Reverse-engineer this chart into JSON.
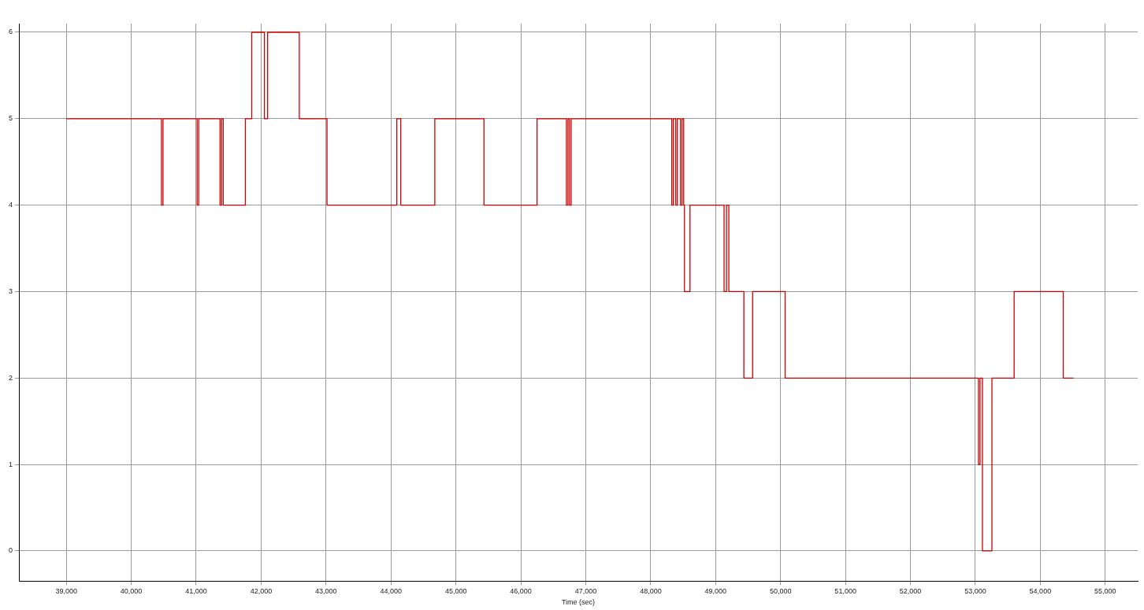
{
  "chart_data": {
    "type": "step",
    "xlabel": "Time (sec)",
    "x": [
      39000,
      40465,
      40489,
      41014,
      41038,
      41368,
      41392,
      41417,
      41758,
      41856,
      42051,
      42100,
      42588,
      43015,
      44090,
      44151,
      44675,
      45432,
      46250,
      46702,
      46726,
      46750,
      46775,
      48325,
      48349,
      48386,
      48410,
      48459,
      48483,
      48508,
      48520,
      48605,
      49130,
      49167,
      49203,
      49435,
      49570,
      50070,
      53048,
      53072,
      53109,
      53255,
      53597,
      54354,
      54513
    ],
    "series": [
      {
        "color": "#cc0000",
        "values": [
          5,
          4,
          5,
          4,
          5,
          4,
          5,
          4,
          5,
          6,
          5,
          6,
          5,
          4,
          5,
          4,
          5,
          4,
          5,
          4,
          5,
          4,
          5,
          4,
          5,
          4,
          5,
          4,
          5,
          4,
          3,
          4,
          3,
          4,
          3,
          2,
          3,
          2,
          1,
          2,
          0,
          2,
          3,
          2,
          2
        ]
      }
    ],
    "xlim": [
      38270,
      55500
    ],
    "ylim": [
      -0.35,
      6.1
    ],
    "xticks": [
      {
        "value": 39000,
        "label": "39,000"
      },
      {
        "value": 40000,
        "label": "40,000"
      },
      {
        "value": 41000,
        "label": "41,000"
      },
      {
        "value": 42000,
        "label": "42,000"
      },
      {
        "value": 43000,
        "label": "43,000"
      },
      {
        "value": 44000,
        "label": "44,000"
      },
      {
        "value": 45000,
        "label": "45,000"
      },
      {
        "value": 46000,
        "label": "46,000"
      },
      {
        "value": 47000,
        "label": "47,000"
      },
      {
        "value": 48000,
        "label": "48,000"
      },
      {
        "value": 49000,
        "label": "49,000"
      },
      {
        "value": 50000,
        "label": "50,000"
      },
      {
        "value": 51000,
        "label": "51,000"
      },
      {
        "value": 52000,
        "label": "52,000"
      },
      {
        "value": 53000,
        "label": "53,000"
      },
      {
        "value": 54000,
        "label": "54,000"
      },
      {
        "value": 55000,
        "label": "55,000"
      }
    ],
    "yticks": [
      0,
      1,
      2,
      3,
      4,
      5,
      6
    ],
    "grid": true,
    "legend": false,
    "line_style": "solid",
    "marker": "none"
  }
}
